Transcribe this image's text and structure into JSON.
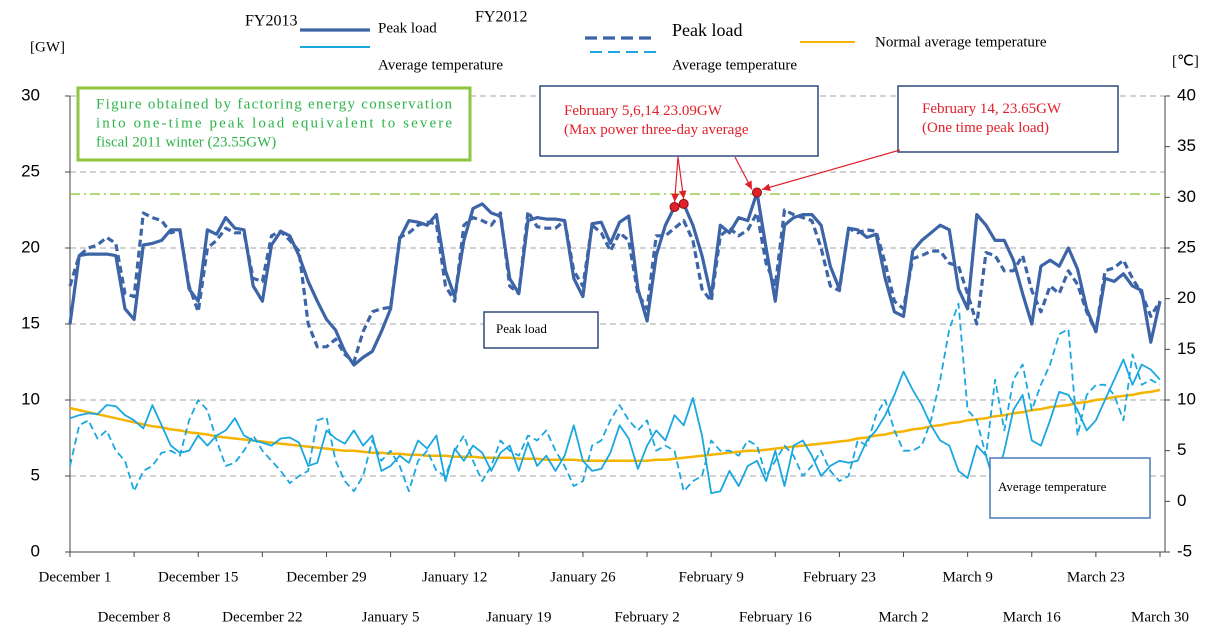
{
  "chart_data": {
    "type": "line",
    "y_label": "[GW]",
    "y2_label": "[℃]",
    "categories": [
      "December 1",
      null,
      null,
      null,
      null,
      null,
      null,
      "December 8",
      null,
      null,
      null,
      null,
      null,
      null,
      "December 15",
      null,
      null,
      null,
      null,
      null,
      null,
      "December 22",
      null,
      null,
      null,
      null,
      null,
      null,
      "December 29",
      null,
      null,
      null,
      null,
      null,
      null,
      "January 5",
      null,
      null,
      null,
      null,
      null,
      null,
      "January 12",
      null,
      null,
      null,
      null,
      null,
      null,
      "January 19",
      null,
      null,
      null,
      null,
      null,
      null,
      "January 26",
      null,
      null,
      null,
      null,
      null,
      null,
      "February 2",
      null,
      null,
      null,
      null,
      null,
      null,
      "February 9",
      null,
      null,
      null,
      null,
      null,
      null,
      "February 16",
      null,
      null,
      null,
      null,
      null,
      null,
      "February 23",
      null,
      null,
      null,
      null,
      null,
      null,
      "March 2",
      null,
      null,
      null,
      null,
      null,
      null,
      "March 9",
      null,
      null,
      null,
      null,
      null,
      null,
      "March 16",
      null,
      null,
      null,
      null,
      null,
      null,
      "March 23",
      null,
      null,
      null,
      null,
      null,
      null,
      "March 30"
    ],
    "series": [
      {
        "name": "Peak load",
        "group": "FY2013",
        "color": "#3c64a6",
        "dash": false,
        "axis": "y",
        "values": [
          15,
          19.5,
          19.6,
          19.6,
          19.6,
          19.5,
          16,
          15.3,
          20.2,
          20.3,
          20.5,
          21.2,
          21.2,
          17.3,
          16.5,
          21.2,
          20.9,
          22,
          21.3,
          21.2,
          17.5,
          16.5,
          20.2,
          21.1,
          20.8,
          19.5,
          17.8,
          16.5,
          15.3,
          14.6,
          13.2,
          12.3,
          12.8,
          13.2,
          14.5,
          16,
          20.6,
          21.8,
          21.7,
          21.5,
          22.2,
          18.5,
          16.8,
          20.5,
          22.6,
          22.9,
          22.3,
          22.1,
          18,
          17,
          21.8,
          22,
          21.9,
          21.9,
          21.8,
          18,
          16.8,
          21.6,
          21.7,
          20.3,
          21.7,
          22.1,
          17.3,
          15.2,
          19.5,
          21.5,
          22.7,
          22.9,
          21.5,
          19.5,
          16.8,
          21.5,
          21,
          22,
          21.8,
          23.65,
          20,
          16.5,
          21.5,
          22,
          22.2,
          22.2,
          21.5,
          18.8,
          17.3,
          21.3,
          21.2,
          20.7,
          20.9,
          18,
          15.8,
          15.5,
          19.8,
          20.5,
          21,
          21.5,
          21.2,
          17.3,
          16,
          22.2,
          21.5,
          20.5,
          20.5,
          19.2,
          17,
          15,
          18.8,
          19.2,
          18.8,
          20,
          18.6,
          16,
          14.5,
          18,
          17.8,
          18.3,
          17.5,
          17.2,
          13.8,
          16.5
        ]
      },
      {
        "name": "Peak load",
        "group": "FY2012",
        "color": "#3c64a6",
        "dash": true,
        "axis": "y",
        "values": [
          17.5,
          19.5,
          20,
          20.2,
          20.7,
          20.3,
          17,
          16.8,
          22.3,
          22,
          21.8,
          21,
          21.2,
          17.5,
          15.8,
          20,
          20.5,
          21.3,
          21,
          21,
          18,
          17.8,
          20.8,
          21.1,
          20.5,
          19.8,
          15,
          13.5,
          13.5,
          14,
          13,
          12.5,
          14.5,
          15.8,
          16,
          16.1,
          20.7,
          21,
          21.5,
          21.7,
          21.6,
          17.5,
          16.5,
          21.5,
          22,
          21.8,
          21.5,
          22.3,
          17.5,
          17,
          22.4,
          21.4,
          21.3,
          21.3,
          21.8,
          18.5,
          17.5,
          21.5,
          21,
          19.8,
          21,
          20.5,
          17,
          16,
          20.8,
          20.8,
          21.3,
          21.8,
          20.5,
          17.3,
          16.5,
          20.8,
          21.3,
          20.8,
          21.2,
          22.3,
          19,
          17.5,
          22.5,
          22.2,
          22,
          21.8,
          20,
          17.5,
          17.2,
          21.3,
          21,
          21.2,
          21.1,
          19,
          16.5,
          16,
          19.3,
          19.5,
          19.8,
          19.8,
          19,
          18.8,
          17,
          15,
          19.7,
          19.5,
          18.5,
          18.5,
          19.5,
          17.2,
          15.8,
          17.5,
          17,
          18.5,
          17.6,
          15.8,
          14.5,
          18.5,
          18.7,
          19.2,
          18,
          17,
          15.5,
          16.5
        ]
      },
      {
        "name": "Average temperature",
        "group": "FY2013",
        "color": "#1aa7e0",
        "dash": false,
        "axis": "y2",
        "values": [
          8.2,
          8.5,
          8.7,
          8.6,
          9.5,
          9.4,
          8.5,
          8,
          7.2,
          9.5,
          7.5,
          5.5,
          4.8,
          5,
          6.5,
          5.5,
          6.5,
          7,
          8.2,
          6.5,
          6,
          5.8,
          5.5,
          6.2,
          6.3,
          5.8,
          3.5,
          3.8,
          7,
          6.2,
          5.7,
          7,
          5.5,
          6.5,
          3,
          3.5,
          4.5,
          3.8,
          6,
          5.2,
          6.5,
          2,
          5.2,
          4,
          5.5,
          4.8,
          3,
          4.8,
          5.5,
          3,
          5.8,
          3.5,
          4.5,
          3,
          4.5,
          7.5,
          4,
          3,
          3.2,
          4.8,
          7.5,
          6.2,
          3.2,
          5.5,
          7,
          6,
          8.5,
          7.5,
          10.2,
          6.5,
          0.8,
          1,
          3,
          1.5,
          3.5,
          4,
          2,
          5,
          1.5,
          5.5,
          6,
          4.5,
          2.5,
          3.5,
          4,
          3.8,
          4,
          6,
          7,
          8.5,
          10.5,
          12.8,
          11,
          9.5,
          7.5,
          6,
          5.5,
          3,
          2.3,
          5.5,
          4.5,
          1.5,
          5,
          9,
          10.5,
          6,
          5.5,
          8,
          10.8,
          10.5,
          9,
          7,
          8,
          10,
          12,
          14,
          11.5,
          13.5,
          13,
          12
        ]
      },
      {
        "name": "Average temperature",
        "group": "FY2012",
        "color": "#1aa7e0",
        "dash": true,
        "axis": "y2",
        "values": [
          3.5,
          7.5,
          8,
          6.2,
          7,
          5,
          4,
          1,
          3,
          3.5,
          4.8,
          5,
          4.5,
          8,
          10,
          9,
          6,
          3.5,
          3.8,
          5,
          6.5,
          5,
          4,
          3,
          1.8,
          2.5,
          3,
          8,
          8.3,
          4,
          2,
          1,
          2.5,
          6,
          4,
          5,
          3.5,
          1,
          4,
          5,
          3,
          2.5,
          5,
          6.5,
          4,
          2,
          3.5,
          6,
          5,
          4.5,
          6.5,
          6,
          7,
          5,
          3.5,
          1.5,
          2,
          5.5,
          6,
          8,
          9.5,
          8,
          7,
          8,
          5,
          5.5,
          5,
          1,
          2,
          2.5,
          6,
          5,
          5,
          4.5,
          6,
          5.5,
          2.5,
          4,
          5.5,
          4.5,
          2.5,
          3.5,
          5,
          3,
          2,
          2.5,
          6,
          5.5,
          8.5,
          10,
          7,
          5,
          5,
          5.5,
          8,
          12,
          17,
          19.5,
          9,
          8,
          4.5,
          12,
          7,
          12,
          13.5,
          9,
          11.5,
          13.5,
          16.5,
          17,
          6.5,
          10.5,
          11.5,
          11.5,
          10.5,
          8,
          14.5,
          11.5,
          12,
          11.5
        ]
      },
      {
        "name": "Normal average temperature",
        "color": "#f5b400",
        "dash": false,
        "axis": "y2",
        "values": [
          9.2,
          9.0,
          8.8,
          8.6,
          8.4,
          8.2,
          8.0,
          7.8,
          7.6,
          7.4,
          7.3,
          7.1,
          7.0,
          6.8,
          6.7,
          6.6,
          6.4,
          6.3,
          6.2,
          6.1,
          6.0,
          5.9,
          5.8,
          5.7,
          5.6,
          5.5,
          5.4,
          5.3,
          5.2,
          5.1,
          5.0,
          5.0,
          4.9,
          4.8,
          4.8,
          4.7,
          4.7,
          4.6,
          4.6,
          4.5,
          4.5,
          4.5,
          4.4,
          4.4,
          4.4,
          4.3,
          4.3,
          4.3,
          4.3,
          4.2,
          4.2,
          4.2,
          4.1,
          4.1,
          4.1,
          4.1,
          4.0,
          4.0,
          4.0,
          4.0,
          4.0,
          4.0,
          4.0,
          4.0,
          4.1,
          4.1,
          4.2,
          4.3,
          4.4,
          4.5,
          4.6,
          4.7,
          4.8,
          4.9,
          5.0,
          5.0,
          5.1,
          5.2,
          5.3,
          5.4,
          5.5,
          5.6,
          5.7,
          5.8,
          5.9,
          6.0,
          6.2,
          6.3,
          6.5,
          6.6,
          6.8,
          6.9,
          7.1,
          7.2,
          7.4,
          7.5,
          7.7,
          7.8,
          8.0,
          8.1,
          8.2,
          8.4,
          8.5,
          8.7,
          8.8,
          9.0,
          9.1,
          9.3,
          9.4,
          9.5,
          9.7,
          9.8,
          10.0,
          10.1,
          10.3,
          10.4,
          10.5,
          10.7,
          10.8,
          11.0
        ]
      }
    ],
    "ylim": [
      0,
      30
    ],
    "yticks": [
      0,
      5,
      10,
      15,
      20,
      25,
      30
    ],
    "y2lim": [
      -5,
      40
    ],
    "y2ticks": [
      -5,
      0,
      5,
      10,
      15,
      20,
      25,
      30,
      35,
      40
    ],
    "grid": true,
    "reference_line": {
      "value": 23.55,
      "color": "#8dc63f"
    },
    "marked_points": [
      66,
      67,
      75
    ],
    "marker_color": "#e0202a",
    "annotations": [
      {
        "lines": [
          "Figure obtained by factoring energy conservation",
          "into one-time peak load equivalent to severe",
          "fiscal 2011 winter (23.55GW)"
        ],
        "color": "#2db34a",
        "border": "#8dc63f"
      },
      {
        "lines": [
          "February 5,6,14 23.09GW",
          "(Max power three-day average"
        ],
        "color": "#e0202a",
        "border": "#2e4a7a"
      },
      {
        "lines": [
          "February 14, 23.65GW",
          "(One time peak load)"
        ],
        "color": "#e0202a",
        "border": "#2e4a7a"
      },
      {
        "lines": [
          "Peak load"
        ],
        "color": "#000000",
        "border": "#2e4a7a"
      },
      {
        "lines": [
          "Average temperature"
        ],
        "color": "#000000",
        "border": "#4a7ab8"
      }
    ]
  }
}
